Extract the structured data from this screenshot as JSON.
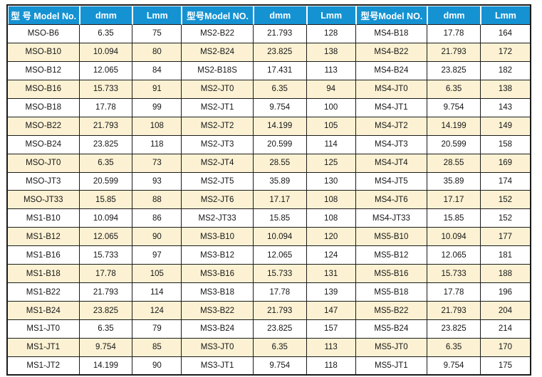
{
  "colors": {
    "header_bg": "#1592d2",
    "header_text": "#ffffff",
    "row_alt_bg": "#fcf2d3",
    "border": "#1a1a1a",
    "cell_text": "#161616"
  },
  "table": {
    "groups": [
      {
        "header": {
          "model": "型 号 Model No.",
          "d": "dmm",
          "l": "Lmm"
        },
        "rows": [
          [
            "MSO-B6",
            "6.35",
            "75"
          ],
          [
            "MSO-B10",
            "10.094",
            "80"
          ],
          [
            "MSO-B12",
            "12.065",
            "84"
          ],
          [
            "MSO-B16",
            "15.733",
            "91"
          ],
          [
            "MSO-B18",
            "17.78",
            "99"
          ],
          [
            "MSO-B22",
            "21.793",
            "108"
          ],
          [
            "MSO-B24",
            "23.825",
            "118"
          ],
          [
            "MSO-JT0",
            "6.35",
            "73"
          ],
          [
            "MSO-JT3",
            "20.599",
            "93"
          ],
          [
            "MSO-JT33",
            "15.85",
            "88"
          ],
          [
            "MS1-B10",
            "10.094",
            "86"
          ],
          [
            "MS1-B12",
            "12.065",
            "90"
          ],
          [
            "MS1-B16",
            "15.733",
            "97"
          ],
          [
            "MS1-B18",
            "17.78",
            "105"
          ],
          [
            "MS1-B22",
            "21.793",
            "114"
          ],
          [
            "MS1-B24",
            "23.825",
            "124"
          ],
          [
            "MS1-JT0",
            "6.35",
            "79"
          ],
          [
            "MS1-JT1",
            "9.754",
            "85"
          ],
          [
            "MS1-JT2",
            "14.199",
            "90"
          ]
        ]
      },
      {
        "header": {
          "model": "型号Model  NO.",
          "d": "dmm",
          "l": "Lmm"
        },
        "rows": [
          [
            "MS2-B22",
            "21.793",
            "128"
          ],
          [
            "MS2-B24",
            "23.825",
            "138"
          ],
          [
            "MS2-B18S",
            "17.431",
            "113"
          ],
          [
            "MS2-JT0",
            "6.35",
            "94"
          ],
          [
            "MS2-JT1",
            "9.754",
            "100"
          ],
          [
            "MS2-JT2",
            "14.199",
            "105"
          ],
          [
            "MS2-JT3",
            "20.599",
            "114"
          ],
          [
            "MS2-JT4",
            "28.55",
            "125"
          ],
          [
            "MS2-JT5",
            "35.89",
            "130"
          ],
          [
            "MS2-JT6",
            "17.17",
            "108"
          ],
          [
            "MS2-JT33",
            "15.85",
            "108"
          ],
          [
            "MS3-B10",
            "10.094",
            "120"
          ],
          [
            "MS3-B12",
            "12.065",
            "124"
          ],
          [
            "MS3-B16",
            "15.733",
            "131"
          ],
          [
            "MS3-B18",
            "17.78",
            "139"
          ],
          [
            "MS3-B22",
            "21.793",
            "147"
          ],
          [
            "MS3-B24",
            "23.825",
            "157"
          ],
          [
            "MS3-JT0",
            "6.35",
            "113"
          ],
          [
            "MS3-JT1",
            "9.754",
            "118"
          ]
        ]
      },
      {
        "header": {
          "model": "型号Model  NO.",
          "d": "dmm",
          "l": "Lmm"
        },
        "rows": [
          [
            "MS4-B18",
            "17.78",
            "164"
          ],
          [
            "MS4-B22",
            "21.793",
            "172"
          ],
          [
            "MS4-B24",
            "23.825",
            "182"
          ],
          [
            "MS4-JT0",
            "6.35",
            "138"
          ],
          [
            "MS4-JT1",
            "9.754",
            "143"
          ],
          [
            "MS4-JT2",
            "14.199",
            "149"
          ],
          [
            "MS4-JT3",
            "20.599",
            "158"
          ],
          [
            "MS4-JT4",
            "28.55",
            "169"
          ],
          [
            "MS4-JT5",
            "35.89",
            "174"
          ],
          [
            "MS4-JT6",
            "17.17",
            "152"
          ],
          [
            "MS4-JT33",
            "15.85",
            "152"
          ],
          [
            "MS5-B10",
            "10.094",
            "177"
          ],
          [
            "MS5-B12",
            "12.065",
            "181"
          ],
          [
            "MS5-B16",
            "15.733",
            "188"
          ],
          [
            "MS5-B18",
            "17.78",
            "196"
          ],
          [
            "MS5-B22",
            "21.793",
            "204"
          ],
          [
            "MS5-B24",
            "23.825",
            "214"
          ],
          [
            "MS5-JT0",
            "6.35",
            "170"
          ],
          [
            "MS5-JT1",
            "9.754",
            "175"
          ]
        ]
      }
    ]
  }
}
